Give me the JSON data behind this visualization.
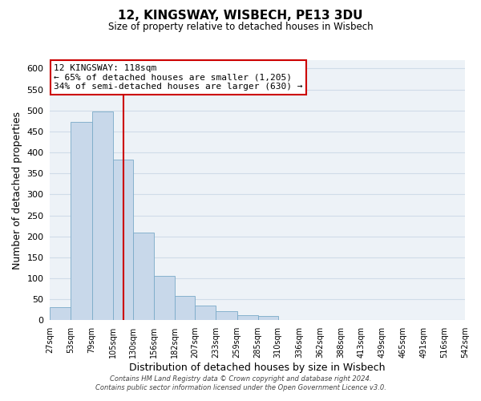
{
  "title": "12, KINGSWAY, WISBECH, PE13 3DU",
  "subtitle": "Size of property relative to detached houses in Wisbech",
  "xlabel": "Distribution of detached houses by size in Wisbech",
  "ylabel": "Number of detached properties",
  "bar_color": "#c8d8ea",
  "bar_edge_color": "#7aaac8",
  "grid_color": "#d0dce8",
  "background_color": "#edf2f7",
  "vline_x": 118,
  "vline_color": "#cc0000",
  "bin_edges": [
    27,
    53,
    79,
    105,
    130,
    156,
    182,
    207,
    233,
    259,
    285,
    310,
    336,
    362,
    388,
    413,
    439,
    465,
    491,
    516,
    542
  ],
  "bar_heights": [
    32,
    473,
    497,
    383,
    210,
    106,
    58,
    36,
    21,
    13,
    11,
    1,
    0,
    0,
    0,
    0,
    0,
    0,
    1,
    1
  ],
  "tick_labels": [
    "27sqm",
    "53sqm",
    "79sqm",
    "105sqm",
    "130sqm",
    "156sqm",
    "182sqm",
    "207sqm",
    "233sqm",
    "259sqm",
    "285sqm",
    "310sqm",
    "336sqm",
    "362sqm",
    "388sqm",
    "413sqm",
    "439sqm",
    "465sqm",
    "491sqm",
    "516sqm",
    "542sqm"
  ],
  "annotation_title": "12 KINGSWAY: 118sqm",
  "annotation_line1": "← 65% of detached houses are smaller (1,205)",
  "annotation_line2": "34% of semi-detached houses are larger (630) →",
  "annotation_box_edge": "#cc0000",
  "footer1": "Contains HM Land Registry data © Crown copyright and database right 2024.",
  "footer2": "Contains public sector information licensed under the Open Government Licence v3.0.",
  "ylim": [
    0,
    620
  ],
  "yticks": [
    0,
    50,
    100,
    150,
    200,
    250,
    300,
    350,
    400,
    450,
    500,
    550,
    600
  ]
}
